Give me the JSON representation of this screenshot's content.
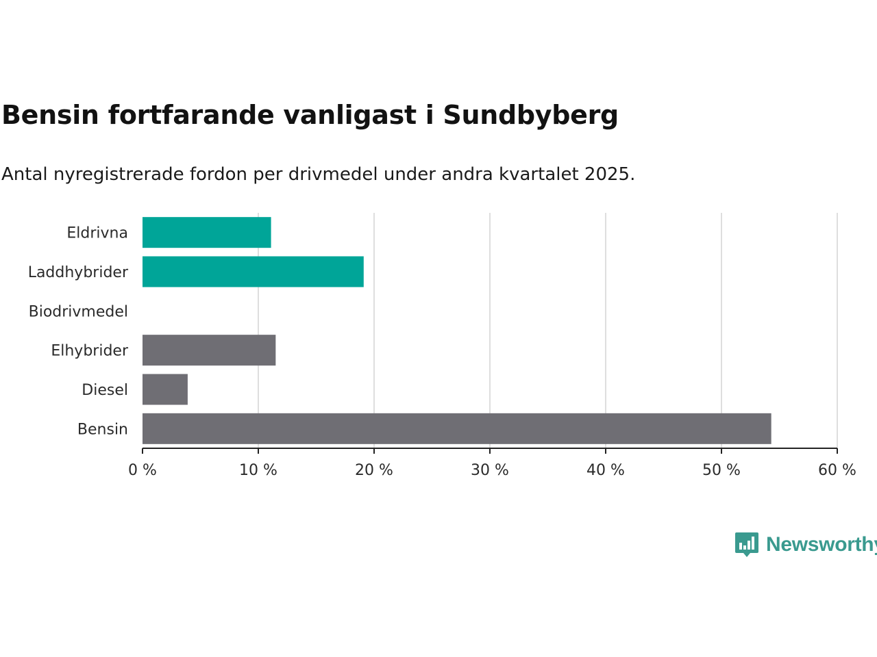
{
  "title": "Bensin fortfarande vanligast i Sundbyberg",
  "subtitle": "Antal nyregistrerade fordon per drivmedel under andra kvartalet 2025.",
  "brand": {
    "name": "Newsworthy",
    "color": "#3a9a8f",
    "icon": "bar-chart-speech-bubble-icon"
  },
  "colors": {
    "highlight": "#00a598",
    "default": "#6f6e74",
    "grid": "#dedede",
    "axis": "#222222"
  },
  "chart_data": {
    "type": "bar",
    "orientation": "horizontal",
    "categories": [
      "Eldrivna",
      "Laddhybrider",
      "Biodrivmedel",
      "Elhybrider",
      "Diesel",
      "Bensin"
    ],
    "values": [
      11.1,
      19.1,
      0,
      11.5,
      3.9,
      54.3
    ],
    "highlighted": [
      true,
      true,
      false,
      false,
      false,
      false
    ],
    "xlim": [
      0,
      60
    ],
    "x_ticks": [
      0,
      10,
      20,
      30,
      40,
      50,
      60
    ],
    "tick_suffix": " %",
    "grid": "vertical"
  }
}
